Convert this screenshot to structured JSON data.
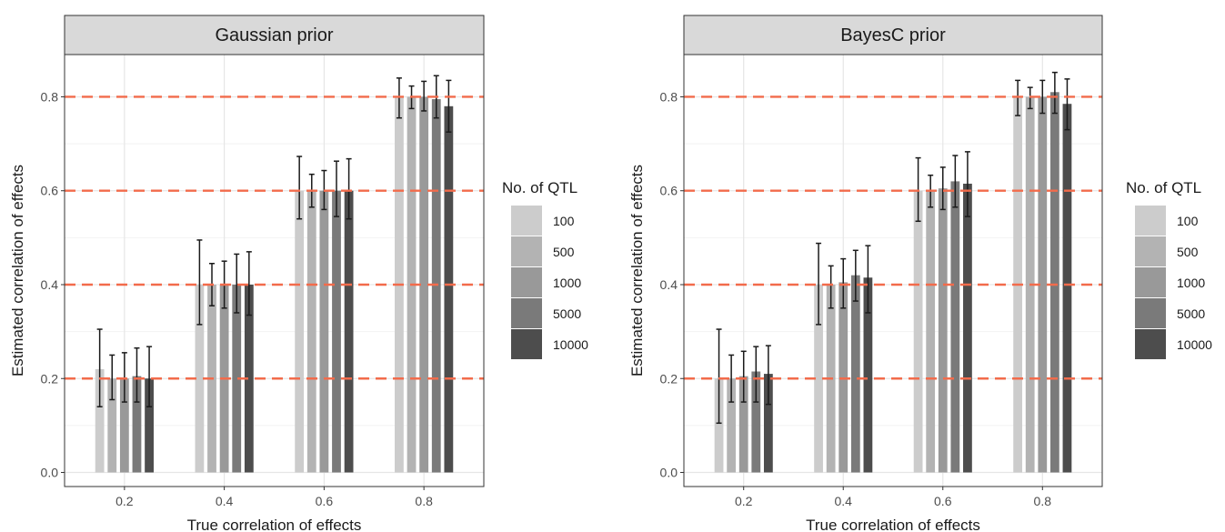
{
  "chart_data": [
    {
      "type": "bar",
      "title": "Gaussian prior",
      "xlabel": "True correlation of effects",
      "ylabel": "Estimated correlation of effects",
      "categories": [
        "0.2",
        "0.4",
        "0.6",
        "0.8"
      ],
      "ylim": [
        -0.03,
        0.89
      ],
      "yticks": [
        "0.0",
        "0.2",
        "0.4",
        "0.6",
        "0.8"
      ],
      "reference_lines": [
        0.2,
        0.4,
        0.6,
        0.8
      ],
      "reference_color": "#f26b4b",
      "grid": true,
      "legend": {
        "title": "No. of QTL",
        "position": "right",
        "entries": [
          "100",
          "500",
          "1000",
          "5000",
          "10000"
        ],
        "colors": [
          "#cccccc",
          "#b3b3b3",
          "#999999",
          "#7a7a7a",
          "#4d4d4d"
        ]
      },
      "series": [
        {
          "name": "100",
          "values": [
            0.22,
            0.4,
            0.6,
            0.8
          ],
          "error_low": [
            0.14,
            0.315,
            0.54,
            0.755
          ],
          "error_high": [
            0.305,
            0.495,
            0.673,
            0.84
          ]
        },
        {
          "name": "500",
          "values": [
            0.2,
            0.4,
            0.6,
            0.8
          ],
          "error_low": [
            0.155,
            0.355,
            0.565,
            0.775
          ],
          "error_high": [
            0.25,
            0.445,
            0.635,
            0.823
          ]
        },
        {
          "name": "1000",
          "values": [
            0.2,
            0.4,
            0.6,
            0.8
          ],
          "error_low": [
            0.15,
            0.35,
            0.56,
            0.77
          ],
          "error_high": [
            0.255,
            0.45,
            0.643,
            0.833
          ]
        },
        {
          "name": "5000",
          "values": [
            0.205,
            0.4,
            0.6,
            0.795
          ],
          "error_low": [
            0.15,
            0.34,
            0.545,
            0.755
          ],
          "error_high": [
            0.265,
            0.465,
            0.663,
            0.845
          ]
        },
        {
          "name": "10000",
          "values": [
            0.2,
            0.4,
            0.6,
            0.78
          ],
          "error_low": [
            0.14,
            0.335,
            0.54,
            0.725
          ],
          "error_high": [
            0.268,
            0.47,
            0.668,
            0.835
          ]
        }
      ]
    },
    {
      "type": "bar",
      "title": "BayesC prior",
      "xlabel": "True correlation of effects",
      "ylabel": "Estimated correlation of effects",
      "categories": [
        "0.2",
        "0.4",
        "0.6",
        "0.8"
      ],
      "ylim": [
        -0.03,
        0.89
      ],
      "yticks": [
        "0.0",
        "0.2",
        "0.4",
        "0.6",
        "0.8"
      ],
      "reference_lines": [
        0.2,
        0.4,
        0.6,
        0.8
      ],
      "reference_color": "#f26b4b",
      "grid": true,
      "legend": {
        "title": "No. of QTL",
        "position": "right",
        "entries": [
          "100",
          "500",
          "1000",
          "5000",
          "10000"
        ],
        "colors": [
          "#cccccc",
          "#b3b3b3",
          "#999999",
          "#7a7a7a",
          "#4d4d4d"
        ]
      },
      "series": [
        {
          "name": "100",
          "values": [
            0.2,
            0.4,
            0.6,
            0.8
          ],
          "error_low": [
            0.105,
            0.315,
            0.535,
            0.76
          ],
          "error_high": [
            0.305,
            0.488,
            0.67,
            0.835
          ]
        },
        {
          "name": "500",
          "values": [
            0.2,
            0.4,
            0.6,
            0.8
          ],
          "error_low": [
            0.15,
            0.35,
            0.565,
            0.775
          ],
          "error_high": [
            0.25,
            0.44,
            0.633,
            0.82
          ]
        },
        {
          "name": "1000",
          "values": [
            0.205,
            0.405,
            0.605,
            0.8
          ],
          "error_low": [
            0.15,
            0.35,
            0.56,
            0.765
          ],
          "error_high": [
            0.258,
            0.455,
            0.65,
            0.835
          ]
        },
        {
          "name": "5000",
          "values": [
            0.215,
            0.42,
            0.62,
            0.81
          ],
          "error_low": [
            0.15,
            0.365,
            0.565,
            0.765
          ],
          "error_high": [
            0.268,
            0.473,
            0.675,
            0.852
          ]
        },
        {
          "name": "10000",
          "values": [
            0.21,
            0.415,
            0.615,
            0.785
          ],
          "error_low": [
            0.145,
            0.34,
            0.545,
            0.73
          ],
          "error_high": [
            0.27,
            0.483,
            0.683,
            0.838
          ]
        }
      ]
    }
  ]
}
